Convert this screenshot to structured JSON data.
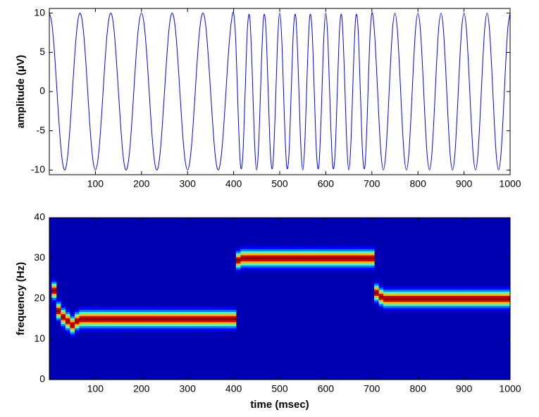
{
  "chart_data": [
    {
      "type": "line",
      "ylabel": "amplitude (μV)",
      "color": "#0000ff",
      "x": [
        0,
        5,
        10,
        15,
        20,
        25,
        30,
        35,
        40,
        45,
        50,
        55,
        60,
        65,
        70,
        75,
        80,
        85,
        90,
        95,
        100,
        105,
        110,
        115,
        120,
        125,
        130,
        135,
        140,
        145,
        150,
        155,
        160,
        165,
        170,
        175,
        180,
        185,
        190,
        195,
        200,
        205,
        210,
        215,
        220,
        225,
        230,
        235,
        240,
        245,
        250,
        255,
        260,
        265,
        270,
        275,
        280,
        285,
        290,
        295,
        300,
        305,
        310,
        315,
        320,
        325,
        330,
        335,
        340,
        345,
        350,
        355,
        360,
        365,
        370,
        375,
        380,
        385,
        390,
        395,
        400,
        405,
        410,
        415,
        420,
        425,
        430,
        435,
        440,
        445,
        450,
        455,
        460,
        465,
        470,
        475,
        480,
        485,
        490,
        495,
        500,
        505,
        510,
        515,
        520,
        525,
        530,
        535,
        540,
        545,
        550,
        555,
        560,
        565,
        570,
        575,
        580,
        585,
        590,
        595,
        600,
        605,
        610,
        615,
        620,
        625,
        630,
        635,
        640,
        645,
        650,
        655,
        660,
        665,
        670,
        675,
        680,
        685,
        690,
        695,
        700,
        705,
        710,
        715,
        720,
        725,
        730,
        735,
        740,
        745,
        750,
        755,
        760,
        765,
        770,
        775,
        780,
        785,
        790,
        795,
        800,
        805,
        810,
        815,
        820,
        825,
        830,
        835,
        840,
        845,
        850,
        855,
        860,
        865,
        870,
        875,
        880,
        885,
        890,
        895,
        900,
        905,
        910,
        915,
        920,
        925,
        930,
        935,
        940,
        945,
        950,
        955,
        960,
        965,
        970,
        975,
        980,
        985,
        990,
        995,
        1000
      ],
      "values": [
        10,
        8.9,
        5.9,
        1.6,
        -3.1,
        -7.1,
        -9.5,
        -9.9,
        -8.1,
        -4.5,
        0,
        4.5,
        8.1,
        9.9,
        9.5,
        7.1,
        3.1,
        -1.6,
        -5.9,
        -8.9,
        -10,
        -8.9,
        -5.9,
        -1.6,
        3.1,
        7.1,
        9.5,
        9.9,
        8.1,
        4.5,
        0,
        -4.5,
        -8.1,
        -9.9,
        -9.5,
        -7.1,
        -3.1,
        1.6,
        5.9,
        8.9,
        10,
        8.9,
        5.9,
        1.6,
        -3.1,
        -7.1,
        -9.5,
        -9.9,
        -8.1,
        -4.5,
        0,
        4.5,
        8.1,
        9.9,
        9.5,
        7.1,
        3.1,
        -1.6,
        -5.9,
        -8.9,
        -10,
        -8.9,
        -5.9,
        -1.6,
        3.1,
        7.1,
        9.5,
        9.9,
        8.1,
        4.5,
        0,
        -4.5,
        -8.1,
        -9.9,
        -9.5,
        -7.1,
        -3.1,
        1.6,
        5.9,
        8.9,
        10,
        5.9,
        -3.1,
        -9.5,
        -8.1,
        0,
        8.1,
        9.5,
        3.1,
        -5.9,
        -10,
        -5.9,
        3.1,
        9.5,
        8.1,
        0,
        -8.1,
        -9.5,
        -3.1,
        5.9,
        10,
        5.9,
        -3.1,
        -9.5,
        -8.1,
        0,
        8.1,
        9.5,
        3.1,
        -5.9,
        -10,
        -5.9,
        3.1,
        9.5,
        8.1,
        0,
        -8.1,
        -9.5,
        -3.1,
        5.9,
        10,
        5.9,
        -3.1,
        -9.5,
        -8.1,
        0,
        8.1,
        9.5,
        3.1,
        -5.9,
        -10,
        -5.9,
        3.1,
        9.5,
        8.1,
        0,
        -8.1,
        -9.5,
        -3.1,
        5.9,
        10,
        8.1,
        3.1,
        -3.1,
        -8.1,
        -10,
        -8.1,
        -3.1,
        3.1,
        8.1,
        10,
        8.1,
        3.1,
        -3.1,
        -8.1,
        -10,
        -8.1,
        -3.1,
        3.1,
        8.1,
        10,
        8.1,
        3.1,
        -3.1,
        -8.1,
        -10,
        -8.1,
        -3.1,
        3.1,
        8.1,
        10,
        8.1,
        3.1,
        -3.1,
        -8.1,
        -10,
        -8.1,
        -3.1,
        3.1,
        8.1,
        10,
        8.1,
        3.1,
        -3.1,
        -8.1,
        -10,
        -8.1,
        -3.1,
        3.1,
        8.1,
        10,
        8.1,
        3.1,
        -3.1,
        -8.1,
        -10,
        -8.1,
        -3.1,
        3.1,
        8.1,
        10
      ],
      "xlim": [
        0,
        1000
      ],
      "xticks": [
        100,
        200,
        300,
        400,
        500,
        600,
        700,
        800,
        900,
        1000
      ],
      "ylim": [
        -10.6,
        10.6
      ],
      "yticks": [
        -10,
        -5,
        0,
        5,
        10
      ]
    },
    {
      "type": "spectrogram",
      "xlabel": "time (msec)",
      "ylabel": "frequency (Hz)",
      "colormap": "jet",
      "x": [
        10,
        20,
        30,
        40,
        50,
        60,
        70,
        80,
        90,
        100,
        110,
        120,
        130,
        140,
        150,
        160,
        170,
        180,
        190,
        200,
        210,
        220,
        230,
        240,
        250,
        260,
        270,
        280,
        290,
        300,
        310,
        320,
        330,
        340,
        350,
        360,
        370,
        380,
        390,
        400,
        410,
        420,
        430,
        440,
        450,
        460,
        470,
        480,
        490,
        500,
        510,
        520,
        530,
        540,
        550,
        560,
        570,
        580,
        590,
        600,
        610,
        620,
        630,
        640,
        650,
        660,
        670,
        680,
        690,
        700,
        710,
        720,
        730,
        740,
        750,
        760,
        770,
        780,
        790,
        800,
        810,
        820,
        830,
        840,
        850,
        860,
        870,
        880,
        890,
        900,
        910,
        920,
        930,
        940,
        950,
        960,
        970,
        980,
        990,
        1000
      ],
      "values": [
        22,
        17,
        15.5,
        14.5,
        13.5,
        14.5,
        15,
        15,
        15,
        15,
        15,
        15,
        15,
        15,
        15,
        15,
        15,
        15,
        15,
        15,
        15,
        15,
        15,
        15,
        15,
        15,
        15,
        15,
        15,
        15,
        15,
        15,
        15,
        15,
        15,
        15,
        15,
        15,
        15,
        15,
        29.5,
        30,
        30,
        30,
        30,
        30,
        30,
        30,
        30,
        30,
        30,
        30,
        30,
        30,
        30,
        30,
        30,
        30,
        30,
        30,
        30,
        30,
        30,
        30,
        30,
        30,
        30,
        30,
        30,
        30,
        21.5,
        20.5,
        20,
        20,
        20,
        20,
        20,
        20,
        20,
        20,
        20,
        20,
        20,
        20,
        20,
        20,
        20,
        20,
        20,
        20,
        20,
        20,
        20,
        20,
        20,
        20,
        20,
        20,
        20,
        20
      ],
      "xlim": [
        0,
        1000
      ],
      "xticks": [
        100,
        200,
        300,
        400,
        500,
        600,
        700,
        800,
        900,
        1000
      ],
      "ylim": [
        0,
        40
      ],
      "yticks": [
        0,
        10,
        20,
        30,
        40
      ]
    }
  ]
}
